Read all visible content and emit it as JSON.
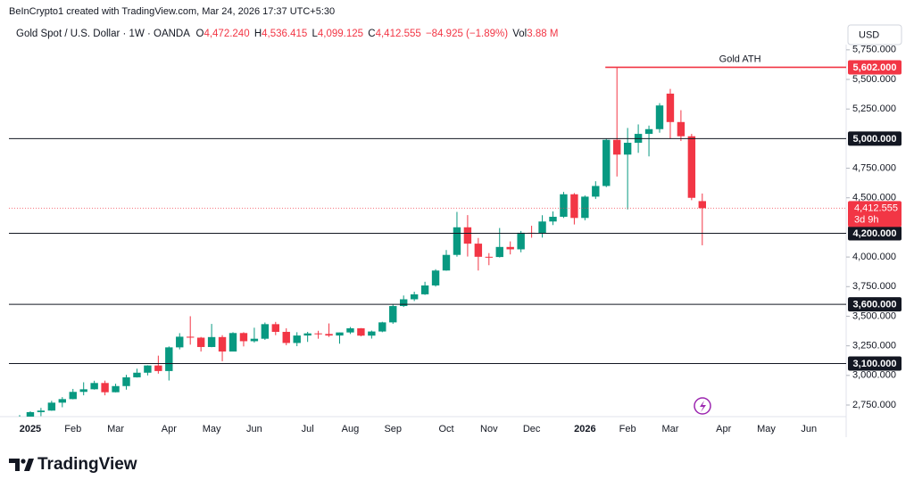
{
  "header": {
    "credit": "BeInCrypto1 created with TradingView.com, Mar 24, 2026 17:37 UTC+5:30",
    "symbol": "Gold Spot / U.S. Dollar · 1W · OANDA",
    "ohlc": [
      {
        "key": "O",
        "value": "4,472.240"
      },
      {
        "key": "H",
        "value": "4,536.415"
      },
      {
        "key": "L",
        "value": "4,099.125"
      },
      {
        "key": "C",
        "value": "4,412.555"
      }
    ],
    "change": "−84.925 (−1.89%)",
    "vol_key": "Vol",
    "vol": "3.88 M",
    "currency": "USD"
  },
  "chart_data": {
    "type": "candlestick",
    "categories": [
      null,
      "2025",
      null,
      null,
      null,
      "Feb",
      null,
      null,
      null,
      "Mar",
      null,
      null,
      null,
      null,
      "Apr",
      null,
      null,
      null,
      "May",
      null,
      null,
      null,
      "Jun",
      null,
      null,
      null,
      null,
      "Jul",
      null,
      null,
      null,
      "Aug",
      null,
      null,
      null,
      "Sep",
      null,
      null,
      null,
      null,
      "Oct",
      null,
      null,
      null,
      "Nov",
      null,
      null,
      null,
      "Dec",
      null,
      null,
      null,
      null,
      "2026",
      null,
      null,
      null,
      "Feb",
      null,
      null,
      null,
      "Mar",
      null,
      null,
      null,
      null,
      "Apr",
      null,
      null,
      null,
      "May",
      null,
      null,
      null,
      "Jun",
      null,
      null,
      null
    ],
    "open": [
      2607,
      2640,
      2690,
      2703,
      2770,
      2800,
      2861,
      2883,
      2936,
      2858,
      2910,
      2984,
      3023,
      3084,
      3037,
      3237,
      3327,
      3319,
      3240,
      3324,
      3202,
      3358,
      3289,
      3310,
      3433,
      3368,
      3274,
      3337,
      3355,
      3350,
      3337,
      3363,
      3398,
      3336,
      3371,
      3448,
      3586,
      3643,
      3685,
      3760,
      3886,
      4018,
      4251,
      4113,
      4002,
      4000,
      4085,
      4065,
      4205,
      4198,
      4300,
      4340,
      4530,
      4330,
      4510,
      4600,
      4990,
      4865,
      4965,
      5040,
      5080,
      5380,
      5140,
      5020,
      4472.24,
      null,
      null,
      null,
      null,
      null,
      null,
      null,
      null,
      null,
      null,
      null,
      null,
      null
    ],
    "high": [
      2665,
      2697,
      2726,
      2786,
      2817,
      2886,
      2942,
      2955,
      2956,
      2930,
      3005,
      3057,
      3086,
      3167,
      3245,
      3357,
      3500,
      3325,
      3435,
      3340,
      3365,
      3365,
      3403,
      3447,
      3452,
      3398,
      3365,
      3368,
      3377,
      3439,
      3362,
      3409,
      3400,
      3379,
      3453,
      3600,
      3675,
      3707,
      3791,
      3897,
      4059,
      4381,
      4354,
      4161,
      4033,
      4245,
      4132,
      4220,
      4264,
      4353,
      4385,
      4550,
      4540,
      4520,
      4640,
      5000,
      5602,
      5090,
      5120,
      5110,
      5300,
      5420,
      5240,
      5040,
      4536.415,
      null,
      null,
      null,
      null,
      null,
      null,
      null,
      null,
      null,
      null,
      null,
      null,
      null
    ],
    "low": [
      2599,
      2636,
      2656,
      2701,
      2731,
      2798,
      2832,
      2880,
      2832,
      2857,
      2880,
      2982,
      3000,
      3015,
      2957,
      3220,
      3260,
      3202,
      3238,
      3120,
      3204,
      3245,
      3278,
      3300,
      3340,
      3255,
      3247,
      3283,
      3310,
      3325,
      3268,
      3350,
      3330,
      3311,
      3365,
      3436,
      3578,
      3628,
      3680,
      3750,
      3884,
      4003,
      4004,
      3886,
      3931,
      3996,
      4022,
      4040,
      4163,
      4164,
      4270,
      4330,
      4275,
      4310,
      4490,
      4590,
      4680,
      4402,
      4880,
      4850,
      5050,
      5000,
      4980,
      4480,
      4099.125,
      null,
      null,
      null,
      null,
      null,
      null,
      null,
      null,
      null,
      null,
      null,
      null,
      null
    ],
    "close": [
      2640,
      2690,
      2703,
      2770,
      2800,
      2861,
      2883,
      2936,
      2858,
      2910,
      2984,
      3023,
      3084,
      3037,
      3237,
      3327,
      3319,
      3240,
      3324,
      3202,
      3358,
      3289,
      3310,
      3433,
      3368,
      3274,
      3337,
      3355,
      3350,
      3337,
      3363,
      3398,
      3336,
      3371,
      3448,
      3586,
      3643,
      3685,
      3760,
      3886,
      4018,
      4251,
      4113,
      4002,
      4000,
      4085,
      4065,
      4205,
      4198,
      4300,
      4340,
      4530,
      4330,
      4510,
      4600,
      4990,
      4865,
      4965,
      5040,
      5080,
      5280,
      5140,
      5020,
      4500,
      4412.555,
      null,
      null,
      null,
      null,
      null,
      null,
      null,
      null,
      null,
      null,
      null,
      null,
      null
    ],
    "up_color": "#089981",
    "down_color": "#f23645",
    "ylim": [
      2652,
      5794
    ],
    "yticks": [
      {
        "value": 2750,
        "label": "2,750.000"
      },
      {
        "value": 3000,
        "label": "3,000.000"
      },
      {
        "value": 3250,
        "label": "3,250.000"
      },
      {
        "value": 3500,
        "label": "3,500.000"
      },
      {
        "value": 3750,
        "label": "3,750.000"
      },
      {
        "value": 4000,
        "label": "4,000.000"
      },
      {
        "value": 4500,
        "label": "4,500.000"
      },
      {
        "value": 4750,
        "label": "4,750.000"
      },
      {
        "value": 5250,
        "label": "5,250.000"
      },
      {
        "value": 5500,
        "label": "5,500.000"
      },
      {
        "value": 5750,
        "label": "5,750.000"
      }
    ],
    "grid": false,
    "levels": [
      {
        "value": 5602,
        "label": "5,602.000",
        "color": "#f23645",
        "annotation": "Gold ATH"
      },
      {
        "value": 5000,
        "label": "5,000.000",
        "color": "#131722"
      },
      {
        "value": 4200,
        "label": "4,200.000",
        "color": "#131722"
      },
      {
        "value": 3600,
        "label": "3,600.000",
        "color": "#131722"
      },
      {
        "value": 3100,
        "label": "3,100.000",
        "color": "#131722"
      }
    ],
    "last_price": {
      "value": 4412.555,
      "label": "4,412.555",
      "countdown": "3d 9h",
      "color": "#f23645"
    }
  },
  "footer": {
    "brand": "TradingView"
  }
}
